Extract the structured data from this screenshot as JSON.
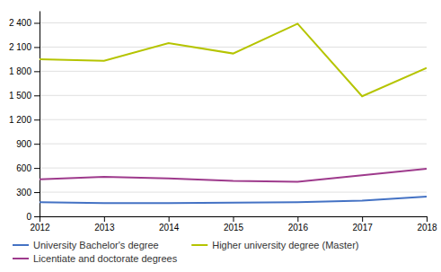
{
  "chart_data": {
    "type": "line",
    "x": [
      2012,
      2013,
      2014,
      2015,
      2016,
      2017,
      2018
    ],
    "series": [
      {
        "name": "University Bachelor's degree",
        "color": "#4472c4",
        "values": [
          175,
          165,
          165,
          170,
          175,
          195,
          245
        ]
      },
      {
        "name": "Higher university degree (Master)",
        "color": "#b5c400",
        "values": [
          1950,
          1930,
          2150,
          2020,
          2390,
          1490,
          1840
        ]
      },
      {
        "name": "Licentiate and doctorate degrees",
        "color": "#9e3a8c",
        "values": [
          460,
          490,
          470,
          440,
          430,
          510,
          590
        ]
      }
    ],
    "xlim": [
      2012,
      2018
    ],
    "xticks": [
      2012,
      2013,
      2014,
      2015,
      2016,
      2017,
      2018
    ],
    "ylim": [
      0,
      2550
    ],
    "yticks": [
      0,
      300,
      600,
      900,
      {
        "value": 1200,
        "label": "1 200"
      },
      {
        "value": 1500,
        "label": "1 500"
      },
      {
        "value": 1800,
        "label": "1 800"
      },
      {
        "value": 2100,
        "label": "2 100"
      },
      {
        "value": 2400,
        "label": "2 400"
      }
    ],
    "grid": true,
    "legend": "bottom"
  }
}
